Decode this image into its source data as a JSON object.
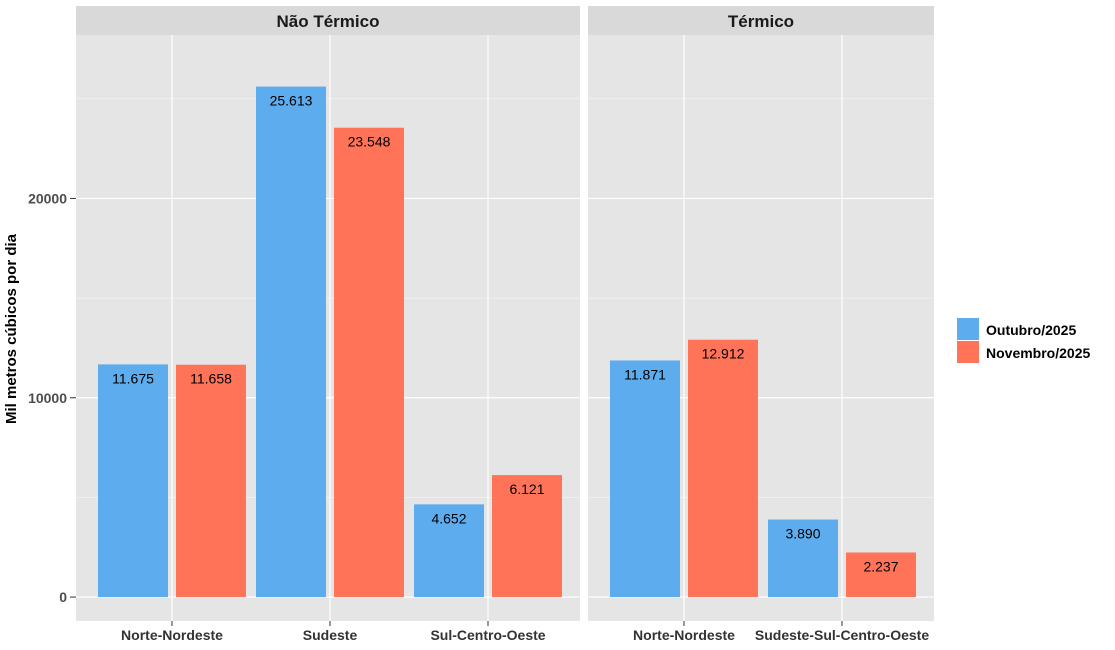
{
  "chart_data": {
    "type": "bar",
    "ylabel": "Mil metros cúbicos por dia",
    "ylim": [
      -1200,
      28200
    ],
    "yticks": [
      0,
      10000,
      20000
    ],
    "grid": true,
    "legend_position": "right",
    "series": [
      {
        "name": "Outubro/2025",
        "color": "#5DADEE"
      },
      {
        "name": "Novembro/2025",
        "color": "#FF7358"
      }
    ],
    "panels": [
      {
        "title": "Não Térmico",
        "categories": [
          "Norte-Nordeste",
          "Sudeste",
          "Sul-Centro-Oeste"
        ],
        "values": [
          [
            11675,
            11658
          ],
          [
            25613,
            23548
          ],
          [
            4652,
            6121
          ]
        ],
        "labels": [
          [
            "11.675",
            "11.658"
          ],
          [
            "25.613",
            "23.548"
          ],
          [
            "4.652",
            "6.121"
          ]
        ]
      },
      {
        "title": "Térmico",
        "categories": [
          "Norte-Nordeste",
          "Sudeste-Sul-Centro-Oeste"
        ],
        "values": [
          [
            11871,
            12912
          ],
          [
            3890,
            2237
          ]
        ],
        "labels": [
          [
            "11.871",
            "12.912"
          ],
          [
            "3.890",
            "2.237"
          ]
        ]
      }
    ]
  }
}
